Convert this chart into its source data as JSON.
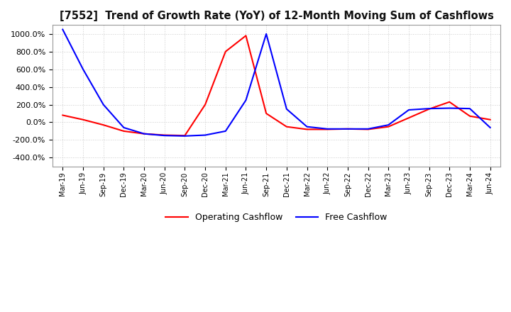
{
  "title": "[7552]  Trend of Growth Rate (YoY) of 12-Month Moving Sum of Cashflows",
  "ylim": [
    -500,
    1100
  ],
  "yticks": [
    -400,
    -200,
    0,
    200,
    400,
    600,
    800,
    1000
  ],
  "background_color": "#ffffff",
  "grid_color": "#cccccc",
  "operating_color": "red",
  "free_color": "blue",
  "legend_labels": [
    "Operating Cashflow",
    "Free Cashflow"
  ],
  "x_labels": [
    "Mar-19",
    "Jun-19",
    "Sep-19",
    "Dec-19",
    "Mar-20",
    "Jun-20",
    "Sep-20",
    "Dec-20",
    "Mar-21",
    "Jun-21",
    "Sep-21",
    "Dec-21",
    "Mar-22",
    "Jun-22",
    "Sep-22",
    "Dec-22",
    "Mar-23",
    "Jun-23",
    "Sep-23",
    "Dec-23",
    "Mar-24",
    "Jun-24"
  ],
  "operating_cashflow": [
    80,
    30,
    -30,
    -100,
    -130,
    -145,
    -150,
    200,
    800,
    980,
    100,
    -50,
    -80,
    -80,
    -75,
    -80,
    -50,
    50,
    150,
    230,
    70,
    30
  ],
  "free_cashflow": [
    1050,
    600,
    200,
    -60,
    -130,
    -150,
    -155,
    -145,
    -100,
    250,
    1000,
    150,
    -50,
    -75,
    -75,
    -75,
    -30,
    140,
    155,
    160,
    155,
    -60
  ]
}
